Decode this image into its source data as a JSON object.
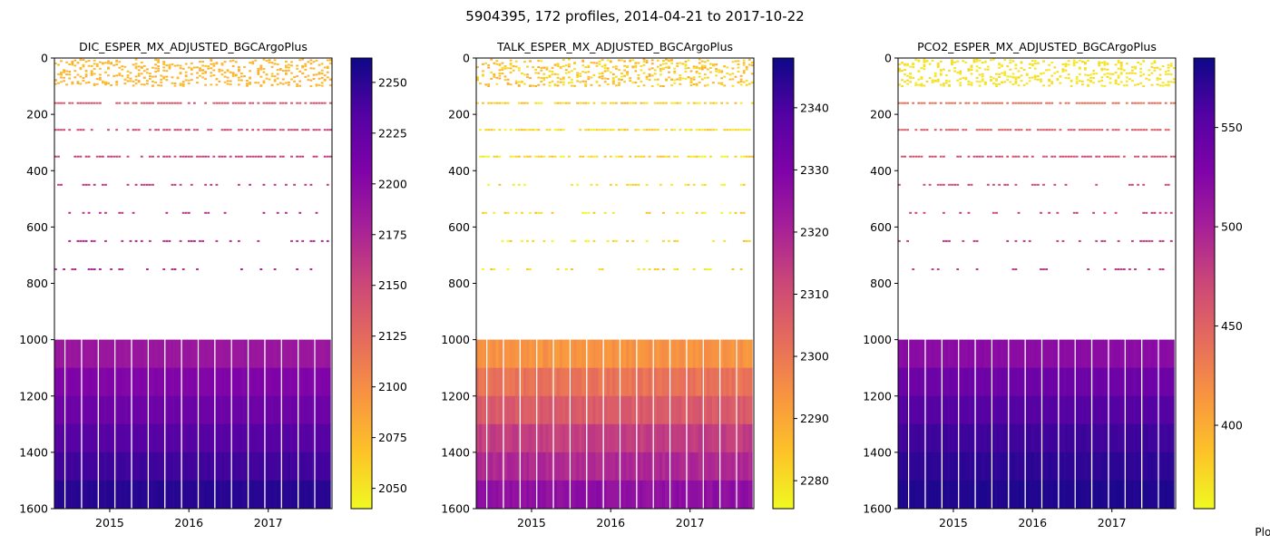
{
  "suptitle": "5904395, 172 profiles, 2014-04-21 to 2017-10-22",
  "credit": "Plot",
  "chart_data": [
    {
      "type": "heatmap",
      "title": "DIC_ESPER_MX_ADJUSTED_BGCArgoPlus",
      "x_range": [
        "2014-04-21",
        "2017-10-22"
      ],
      "x_ticks": [
        "2015",
        "2016",
        "2017"
      ],
      "y_range": [
        1600,
        0
      ],
      "y_ticks": [
        0,
        200,
        400,
        600,
        800,
        1000,
        1200,
        1400,
        1600
      ],
      "colorbar": {
        "min": 2040,
        "max": 2262,
        "ticks": [
          2050,
          2075,
          2100,
          2125,
          2150,
          2175,
          2200,
          2225,
          2250
        ],
        "colormap": "plasma_r"
      },
      "depth_profile": [
        {
          "depth": 50,
          "value": 2075
        },
        {
          "depth": 160,
          "value": 2140
        },
        {
          "depth": 255,
          "value": 2150
        },
        {
          "depth": 350,
          "value": 2155
        },
        {
          "depth": 450,
          "value": 2160
        },
        {
          "depth": 550,
          "value": 2165
        },
        {
          "depth": 650,
          "value": 2168
        },
        {
          "depth": 750,
          "value": 2170
        },
        {
          "depth": 1050,
          "value": 2188
        },
        {
          "depth": 1150,
          "value": 2205
        },
        {
          "depth": 1250,
          "value": 2218
        },
        {
          "depth": 1350,
          "value": 2232
        },
        {
          "depth": 1450,
          "value": 2242
        },
        {
          "depth": 1550,
          "value": 2252
        }
      ]
    },
    {
      "type": "heatmap",
      "title": "TALK_ESPER_MX_ADJUSTED_BGCArgoPlus",
      "x_range": [
        "2014-04-21",
        "2017-10-22"
      ],
      "x_ticks": [
        "2015",
        "2016",
        "2017"
      ],
      "y_range": [
        1600,
        0
      ],
      "y_ticks": [
        0,
        200,
        400,
        600,
        800,
        1000,
        1200,
        1400,
        1600
      ],
      "colorbar": {
        "min": 2275.5,
        "max": 2348,
        "ticks": [
          2280,
          2290,
          2300,
          2310,
          2320,
          2330,
          2340
        ],
        "colormap": "plasma_r"
      },
      "depth_profile": [
        {
          "depth": 50,
          "value": 2284
        },
        {
          "depth": 160,
          "value": 2282
        },
        {
          "depth": 255,
          "value": 2281
        },
        {
          "depth": 350,
          "value": 2280
        },
        {
          "depth": 450,
          "value": 2280
        },
        {
          "depth": 550,
          "value": 2280
        },
        {
          "depth": 650,
          "value": 2280
        },
        {
          "depth": 750,
          "value": 2281
        },
        {
          "depth": 1050,
          "value": 2294
        },
        {
          "depth": 1150,
          "value": 2301
        },
        {
          "depth": 1250,
          "value": 2307
        },
        {
          "depth": 1350,
          "value": 2314
        },
        {
          "depth": 1450,
          "value": 2319
        },
        {
          "depth": 1550,
          "value": 2326
        }
      ]
    },
    {
      "type": "heatmap",
      "title": "PCO2_ESPER_MX_ADJUSTED_BGCArgoPlus",
      "x_range": [
        "2014-04-21",
        "2017-10-22"
      ],
      "x_ticks": [
        "2015",
        "2016",
        "2017"
      ],
      "y_range": [
        1600,
        0
      ],
      "y_ticks": [
        0,
        200,
        400,
        600,
        800,
        1000,
        1200,
        1400,
        1600
      ],
      "colorbar": {
        "min": 358,
        "max": 585,
        "ticks": [
          400,
          450,
          500,
          550
        ],
        "colormap": "plasma_r"
      },
      "depth_profile": [
        {
          "depth": 50,
          "value": 370
        },
        {
          "depth": 160,
          "value": 440
        },
        {
          "depth": 255,
          "value": 455
        },
        {
          "depth": 350,
          "value": 465
        },
        {
          "depth": 450,
          "value": 470
        },
        {
          "depth": 550,
          "value": 475
        },
        {
          "depth": 650,
          "value": 478
        },
        {
          "depth": 750,
          "value": 480
        },
        {
          "depth": 1050,
          "value": 520
        },
        {
          "depth": 1150,
          "value": 540
        },
        {
          "depth": 1250,
          "value": 555
        },
        {
          "depth": 1350,
          "value": 565
        },
        {
          "depth": 1450,
          "value": 572
        },
        {
          "depth": 1550,
          "value": 578
        }
      ]
    }
  ]
}
